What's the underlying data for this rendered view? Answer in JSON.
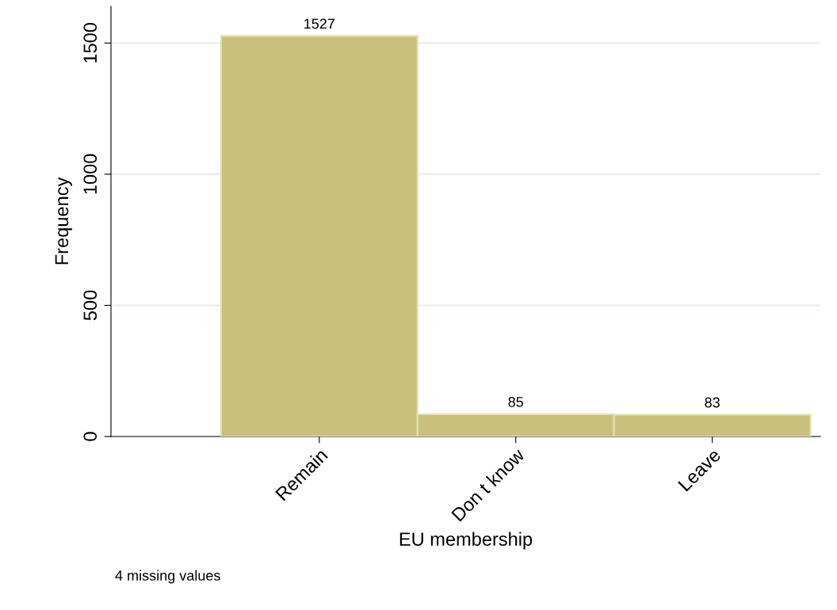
{
  "chart_data": {
    "type": "bar",
    "xlabel": "EU membership",
    "ylabel": "Frequency",
    "categories": [
      "Remain",
      "Don t know",
      "Leave"
    ],
    "values": [
      1527,
      85,
      83
    ],
    "color": "#c9c07c",
    "ylim": [
      0,
      1640
    ],
    "yticks": [
      0,
      500,
      1000,
      1500
    ],
    "grid": "y",
    "data_labels": true,
    "annotations": [
      "4 missing values"
    ]
  }
}
